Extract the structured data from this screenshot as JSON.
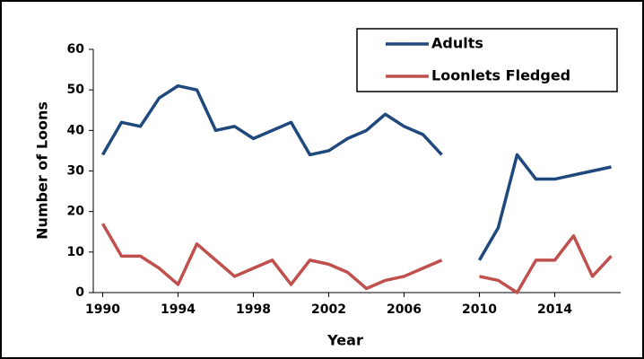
{
  "chart_data": {
    "type": "line",
    "x_label": "Year",
    "y_label": "Number of Loons",
    "x": [
      1990,
      1991,
      1992,
      1993,
      1994,
      1995,
      1996,
      1997,
      1998,
      1999,
      2000,
      2001,
      2002,
      2003,
      2004,
      2005,
      2006,
      2007,
      2008,
      2009,
      2010,
      2011,
      2012,
      2013,
      2014,
      2015,
      2016,
      2017
    ],
    "series": [
      {
        "name": "Adults",
        "color": "#1f497d",
        "values": [
          34,
          42,
          41,
          48,
          51,
          50,
          40,
          41,
          38,
          40,
          42,
          34,
          35,
          38,
          40,
          44,
          41,
          39,
          34,
          null,
          8,
          16,
          34,
          28,
          28,
          29,
          30,
          31
        ]
      },
      {
        "name": "Loonlets Fledged",
        "color": "#c0504d",
        "values": [
          17,
          9,
          9,
          6,
          2,
          12,
          8,
          4,
          6,
          8,
          2,
          8,
          7,
          5,
          1,
          3,
          4,
          6,
          8,
          null,
          4,
          3,
          0,
          8,
          8,
          14,
          4,
          9
        ]
      }
    ],
    "xlim": [
      1989.5,
      2017.5
    ],
    "xticks": [
      1990,
      1994,
      1998,
      2002,
      2006,
      2010,
      2014
    ],
    "ylim": [
      0,
      60
    ],
    "yticks": [
      0,
      10,
      20,
      30,
      40,
      50,
      60
    ],
    "legend": "top-right"
  }
}
